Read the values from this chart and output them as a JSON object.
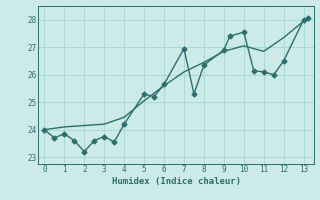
{
  "xlabel": "Humidex (Indice chaleur)",
  "ylabel": "",
  "bg_color": "#cceae8",
  "line_color": "#2d6e6e",
  "grid_color": "#aad8d5",
  "x_jagged": [
    0,
    0.5,
    1,
    1.5,
    2,
    2.5,
    3,
    3.5,
    4,
    5,
    5.5,
    6,
    7,
    7.5,
    8,
    9,
    9.3,
    10,
    10.5,
    11,
    11.5,
    12,
    13,
    13.2
  ],
  "y_jagged": [
    24.0,
    23.7,
    23.85,
    23.6,
    23.2,
    23.6,
    23.75,
    23.55,
    24.2,
    25.3,
    25.2,
    25.65,
    26.95,
    25.3,
    26.35,
    26.9,
    27.4,
    27.55,
    26.15,
    26.1,
    26.0,
    26.5,
    28.0,
    28.05
  ],
  "x_trend": [
    0,
    1,
    2,
    3,
    4,
    5,
    6,
    7,
    8,
    9,
    10,
    11,
    12,
    13
  ],
  "y_trend": [
    24.0,
    24.1,
    24.15,
    24.2,
    24.45,
    25.05,
    25.6,
    26.1,
    26.45,
    26.85,
    27.05,
    26.85,
    27.35,
    27.95
  ],
  "xlim": [
    -0.3,
    13.5
  ],
  "ylim": [
    22.75,
    28.5
  ],
  "xticks": [
    0,
    1,
    2,
    3,
    4,
    5,
    6,
    7,
    8,
    9,
    10,
    11,
    12,
    13
  ],
  "yticks": [
    23,
    24,
    25,
    26,
    27,
    28
  ]
}
